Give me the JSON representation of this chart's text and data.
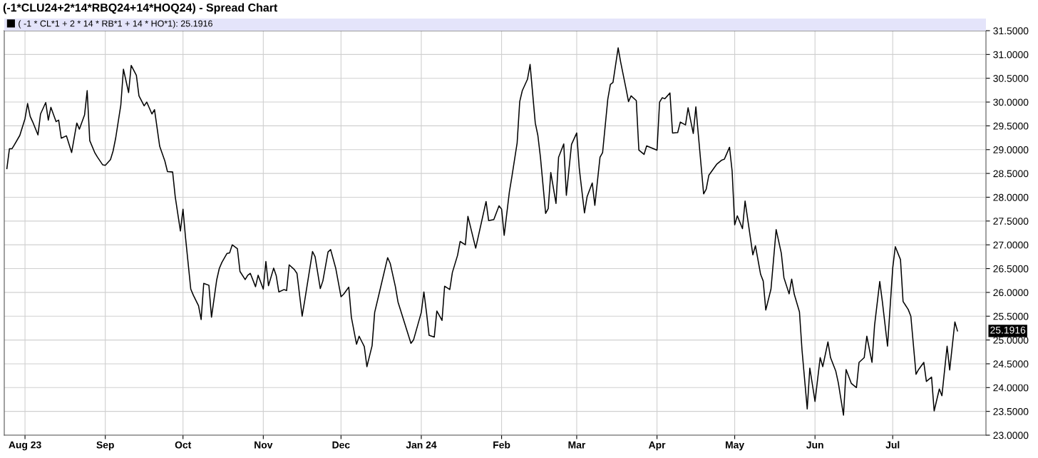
{
  "chart_data": {
    "type": "line",
    "title": "(-1*CLU24+2*14*RBQ24+14*HOQ24) - Spread Chart",
    "x": [
      "2023-07-25",
      "2023-07-26",
      "2023-07-27",
      "2023-07-28",
      "2023-07-30",
      "2023-08-01",
      "2023-08-02",
      "2023-08-03",
      "2023-08-04",
      "2023-08-06",
      "2023-08-07",
      "2023-08-09",
      "2023-08-10",
      "2023-08-11",
      "2023-08-13",
      "2023-08-14",
      "2023-08-15",
      "2023-08-17",
      "2023-08-19",
      "2023-08-21",
      "2023-08-22",
      "2023-08-24",
      "2023-08-25",
      "2023-08-26",
      "2023-08-28",
      "2023-08-29",
      "2023-08-31",
      "2023-09-01",
      "2023-09-03",
      "2023-09-04",
      "2023-09-05",
      "2023-09-07",
      "2023-09-08",
      "2023-09-10",
      "2023-09-11",
      "2023-09-13",
      "2023-09-14",
      "2023-09-16",
      "2023-09-17",
      "2023-09-19",
      "2023-09-20",
      "2023-09-22",
      "2023-09-24",
      "2023-09-25",
      "2023-09-27",
      "2023-09-28",
      "2023-09-30",
      "2023-10-01",
      "2023-10-02",
      "2023-10-04",
      "2023-10-05",
      "2023-10-07",
      "2023-10-08",
      "2023-10-09",
      "2023-10-11",
      "2023-10-12",
      "2023-10-14",
      "2023-10-15",
      "2023-10-16",
      "2023-10-18",
      "2023-10-19",
      "2023-10-20",
      "2023-10-22",
      "2023-10-23",
      "2023-10-25",
      "2023-10-26",
      "2023-10-27",
      "2023-10-29",
      "2023-10-30",
      "2023-11-01",
      "2023-11-02",
      "2023-11-03",
      "2023-11-05",
      "2023-11-06",
      "2023-11-07",
      "2023-11-09",
      "2023-11-10",
      "2023-11-11",
      "2023-11-13",
      "2023-11-14",
      "2023-11-16",
      "2023-11-17",
      "2023-11-20",
      "2023-11-21",
      "2023-11-23",
      "2023-11-24",
      "2023-11-26",
      "2023-11-27",
      "2023-11-29",
      "2023-12-01",
      "2023-12-02",
      "2023-12-04",
      "2023-12-05",
      "2023-12-07",
      "2023-12-08",
      "2023-12-10",
      "2023-12-11",
      "2023-12-13",
      "2023-12-14",
      "2023-12-16",
      "2023-12-19",
      "2023-12-20",
      "2023-12-22",
      "2023-12-23",
      "2023-12-28",
      "2023-12-29",
      "2024-01-01",
      "2024-01-02",
      "2024-01-03",
      "2024-01-04",
      "2024-01-06",
      "2024-01-07",
      "2024-01-09",
      "2024-01-10",
      "2024-01-12",
      "2024-01-13",
      "2024-01-15",
      "2024-01-16",
      "2024-01-18",
      "2024-01-19",
      "2024-01-22",
      "2024-01-26",
      "2024-01-27",
      "2024-01-29",
      "2024-01-31",
      "2024-02-01",
      "2024-02-02",
      "2024-02-04",
      "2024-02-05",
      "2024-02-07",
      "2024-02-08",
      "2024-02-09",
      "2024-02-11",
      "2024-02-12",
      "2024-02-14",
      "2024-02-15",
      "2024-02-16",
      "2024-02-18",
      "2024-02-19",
      "2024-02-20",
      "2024-02-22",
      "2024-02-23",
      "2024-02-25",
      "2024-02-26",
      "2024-02-28",
      "2024-03-01",
      "2024-03-02",
      "2024-03-04",
      "2024-03-05",
      "2024-03-07",
      "2024-03-08",
      "2024-03-10",
      "2024-03-11",
      "2024-03-13",
      "2024-03-14",
      "2024-03-15",
      "2024-03-17",
      "2024-03-18",
      "2024-03-20",
      "2024-03-21",
      "2024-03-22",
      "2024-03-24",
      "2024-03-25",
      "2024-03-27",
      "2024-03-28",
      "2024-04-01",
      "2024-04-02",
      "2024-04-03",
      "2024-04-04",
      "2024-04-06",
      "2024-04-07",
      "2024-04-09",
      "2024-04-10",
      "2024-04-12",
      "2024-04-13",
      "2024-04-15",
      "2024-04-16",
      "2024-04-19",
      "2024-04-20",
      "2024-04-21",
      "2024-04-24",
      "2024-04-26",
      "2024-04-27",
      "2024-04-29",
      "2024-04-30",
      "2024-05-01",
      "2024-05-02",
      "2024-05-04",
      "2024-05-05",
      "2024-05-07",
      "2024-05-08",
      "2024-05-09",
      "2024-05-11",
      "2024-05-12",
      "2024-05-13",
      "2024-05-15",
      "2024-05-17",
      "2024-05-19",
      "2024-05-20",
      "2024-05-22",
      "2024-05-23",
      "2024-05-24",
      "2024-05-26",
      "2024-05-27",
      "2024-05-29",
      "2024-05-30",
      "2024-06-01",
      "2024-06-03",
      "2024-06-04",
      "2024-06-06",
      "2024-06-07",
      "2024-06-09",
      "2024-06-10",
      "2024-06-12",
      "2024-06-13",
      "2024-06-15",
      "2024-06-17",
      "2024-06-18",
      "2024-06-20",
      "2024-06-21",
      "2024-06-23",
      "2024-06-24",
      "2024-06-26",
      "2024-06-27",
      "2024-06-29",
      "2024-07-01",
      "2024-07-02",
      "2024-07-04",
      "2024-07-05",
      "2024-07-07",
      "2024-07-08",
      "2024-07-10",
      "2024-07-11",
      "2024-07-13",
      "2024-07-14",
      "2024-07-16",
      "2024-07-17",
      "2024-07-19",
      "2024-07-20",
      "2024-07-22",
      "2024-07-23",
      "2024-07-25",
      "2024-07-26"
    ],
    "series": [
      {
        "name": "( -1 * CL*1 + 2 * 14 * RB*1 + 14 * HO*1): 25.1916",
        "color": "#000000",
        "values": [
          28.6,
          29.02,
          29.02,
          29.11,
          29.3,
          29.65,
          29.97,
          29.7,
          29.58,
          29.31,
          29.75,
          29.99,
          29.62,
          29.89,
          29.59,
          29.62,
          29.24,
          29.29,
          28.94,
          29.56,
          29.43,
          29.73,
          30.24,
          29.19,
          28.93,
          28.84,
          28.68,
          28.67,
          28.79,
          28.97,
          29.24,
          29.94,
          30.69,
          30.2,
          30.77,
          30.56,
          30.13,
          29.92,
          30.0,
          29.75,
          29.84,
          29.07,
          28.76,
          28.54,
          28.53,
          28.01,
          27.29,
          27.75,
          27.14,
          26.07,
          25.94,
          25.72,
          25.43,
          26.19,
          26.15,
          25.48,
          26.26,
          26.5,
          26.63,
          26.82,
          26.83,
          27.0,
          26.92,
          26.44,
          26.27,
          26.36,
          26.4,
          26.12,
          26.36,
          26.07,
          26.65,
          26.14,
          26.51,
          26.35,
          26.01,
          26.06,
          26.04,
          26.58,
          26.48,
          26.4,
          25.5,
          25.83,
          26.86,
          26.75,
          26.08,
          26.24,
          26.85,
          26.9,
          26.5,
          25.91,
          25.96,
          26.11,
          25.48,
          24.91,
          25.08,
          24.86,
          24.44,
          24.88,
          25.58,
          26.04,
          26.73,
          26.61,
          26.12,
          25.8,
          24.93,
          25.0,
          25.58,
          26.01,
          25.58,
          25.1,
          25.06,
          25.61,
          25.41,
          26.13,
          26.06,
          26.42,
          26.78,
          27.07,
          27.0,
          27.6,
          26.93,
          27.91,
          27.51,
          27.53,
          27.82,
          27.75,
          27.2,
          28.11,
          28.44,
          29.14,
          30.01,
          30.24,
          30.48,
          30.79,
          29.56,
          29.3,
          28.84,
          27.66,
          27.76,
          28.52,
          27.87,
          28.84,
          29.12,
          28.04,
          29.11,
          29.35,
          28.6,
          27.67,
          28.01,
          28.3,
          27.83,
          28.84,
          28.94,
          30.06,
          30.37,
          30.41,
          31.14,
          30.83,
          30.29,
          30.01,
          30.13,
          30.03,
          28.99,
          28.9,
          29.08,
          28.99,
          30.0,
          30.09,
          30.07,
          30.19,
          29.35,
          29.36,
          29.58,
          29.52,
          29.88,
          29.34,
          29.9,
          28.07,
          28.17,
          28.46,
          28.69,
          28.78,
          28.8,
          29.05,
          28.55,
          27.42,
          27.61,
          27.34,
          27.92,
          27.17,
          26.79,
          26.98,
          26.38,
          26.24,
          25.63,
          26.07,
          27.32,
          26.82,
          26.31,
          25.97,
          26.28,
          25.96,
          25.59,
          24.78,
          23.55,
          24.41,
          23.71,
          24.63,
          24.44,
          24.96,
          24.63,
          24.35,
          24.1,
          23.42,
          24.38,
          24.09,
          24.0,
          24.53,
          24.63,
          25.08,
          24.53,
          25.31,
          26.23,
          25.81,
          24.87,
          26.51,
          26.96,
          26.69,
          25.81,
          25.64,
          25.5,
          24.28,
          24.38,
          24.53,
          24.13,
          24.22,
          23.51,
          23.97,
          23.83,
          24.87,
          24.37,
          25.38,
          25.19
        ]
      }
    ],
    "xlim": [
      "2023-07-24",
      "2024-08-06"
    ],
    "xticks": [
      {
        "value": "2023-08-01",
        "label": "Aug 23"
      },
      {
        "value": "2023-09-01",
        "label": "Sep"
      },
      {
        "value": "2023-10-01",
        "label": "Oct"
      },
      {
        "value": "2023-11-01",
        "label": "Nov"
      },
      {
        "value": "2023-12-01",
        "label": "Dec"
      },
      {
        "value": "2024-01-01",
        "label": "Jan 24"
      },
      {
        "value": "2024-02-01",
        "label": "Feb"
      },
      {
        "value": "2024-03-01",
        "label": "Mar"
      },
      {
        "value": "2024-04-01",
        "label": "Apr"
      },
      {
        "value": "2024-05-01",
        "label": "May"
      },
      {
        "value": "2024-06-01",
        "label": "Jun"
      },
      {
        "value": "2024-07-01",
        "label": "Jul"
      }
    ],
    "ylim": [
      23,
      31.5
    ],
    "yticks": [
      {
        "value": 23,
        "label": "23.0000"
      },
      {
        "value": 23.5,
        "label": "23.5000"
      },
      {
        "value": 24,
        "label": "24.0000"
      },
      {
        "value": 24.5,
        "label": "24.5000"
      },
      {
        "value": 25,
        "label": "25.0000"
      },
      {
        "value": 25.5,
        "label": "25.5000"
      },
      {
        "value": 26,
        "label": "26.0000"
      },
      {
        "value": 26.5,
        "label": "26.5000"
      },
      {
        "value": 27,
        "label": "27.0000"
      },
      {
        "value": 27.5,
        "label": "27.5000"
      },
      {
        "value": 28,
        "label": "28.0000"
      },
      {
        "value": 28.5,
        "label": "28.5000"
      },
      {
        "value": 29,
        "label": "29.0000"
      },
      {
        "value": 29.5,
        "label": "29.5000"
      },
      {
        "value": 30,
        "label": "30.0000"
      },
      {
        "value": 30.5,
        "label": "30.5000"
      },
      {
        "value": 31,
        "label": "31.0000"
      },
      {
        "value": 31.5,
        "label": "31.5000"
      }
    ],
    "annotations": [
      "25.1916"
    ],
    "grid": true,
    "legend": "top left",
    "marker": "none",
    "line_style": "solid"
  }
}
